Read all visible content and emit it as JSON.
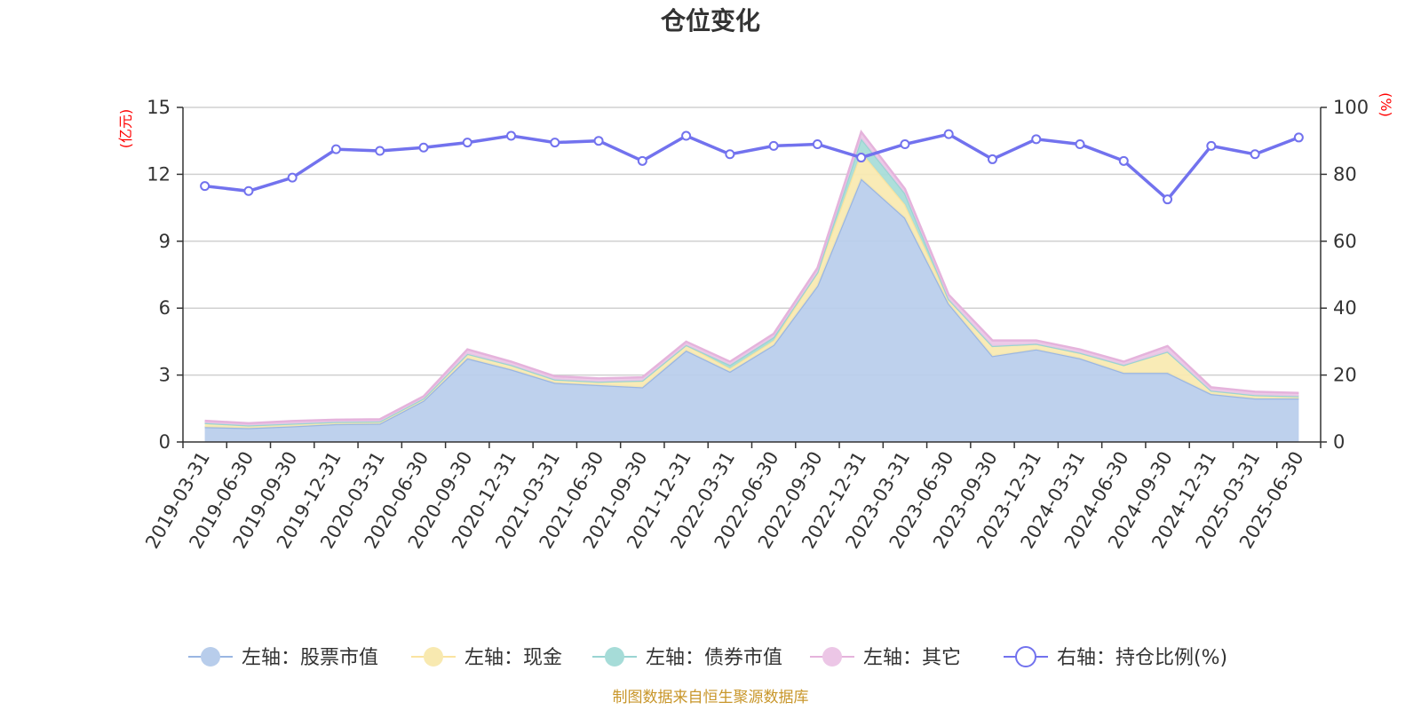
{
  "title": "仓位变化",
  "footer": "制图数据来自恒生聚源数据库",
  "chart_data": {
    "type": "area",
    "title": "仓位变化",
    "categories": [
      "2019-03-31",
      "2019-06-30",
      "2019-09-30",
      "2019-12-31",
      "2020-03-31",
      "2020-06-30",
      "2020-09-30",
      "2020-12-31",
      "2021-03-31",
      "2021-06-30",
      "2021-09-30",
      "2021-12-31",
      "2022-03-31",
      "2022-06-30",
      "2022-09-30",
      "2022-12-31",
      "2023-03-31",
      "2023-06-30",
      "2023-09-30",
      "2023-12-31",
      "2024-03-31",
      "2024-06-30",
      "2024-09-30",
      "2024-12-31",
      "2025-03-31",
      "2025-06-30"
    ],
    "left_axis": {
      "unit": "(亿元)",
      "range": [
        0,
        15
      ],
      "ticks": [
        0,
        3,
        6,
        9,
        12,
        15
      ]
    },
    "right_axis": {
      "unit": "(%)",
      "range": [
        0,
        100
      ],
      "ticks": [
        0,
        20,
        40,
        60,
        80,
        100
      ]
    },
    "stacked_series": [
      {
        "name": "左轴：股票市值",
        "color": "#9ab6e2",
        "fill": "#b8cdeb",
        "values": [
          0.67,
          0.62,
          0.7,
          0.8,
          0.82,
          1.85,
          3.75,
          3.25,
          2.65,
          2.55,
          2.45,
          4.1,
          3.15,
          4.35,
          7.0,
          11.8,
          10.05,
          6.2,
          3.85,
          4.15,
          3.75,
          3.1,
          3.1,
          2.15,
          1.95,
          1.95
        ]
      },
      {
        "name": "左轴：现金",
        "color": "#fae3a0",
        "fill": "#f8e9b0",
        "values": [
          0.18,
          0.12,
          0.12,
          0.1,
          0.1,
          0.1,
          0.2,
          0.2,
          0.15,
          0.15,
          0.3,
          0.25,
          0.15,
          0.2,
          0.6,
          1.2,
          0.6,
          0.2,
          0.45,
          0.25,
          0.25,
          0.35,
          0.95,
          0.15,
          0.15,
          0.1
        ]
      },
      {
        "name": "左轴：债券市值",
        "color": "#9ad4d2",
        "fill": "#a6dcd8",
        "values": [
          0.0,
          0.0,
          0.0,
          0.0,
          0.0,
          0.0,
          0.0,
          0.0,
          0.0,
          0.0,
          0.0,
          0.0,
          0.15,
          0.15,
          0.0,
          0.6,
          0.5,
          0.0,
          0.0,
          0.0,
          0.0,
          0.0,
          0.0,
          0.0,
          0.0,
          0.0
        ]
      },
      {
        "name": "左轴：其它",
        "color": "#e5b3dc",
        "fill": "#ecc6e6",
        "values": [
          0.1,
          0.1,
          0.12,
          0.1,
          0.1,
          0.1,
          0.2,
          0.15,
          0.15,
          0.15,
          0.15,
          0.15,
          0.15,
          0.15,
          0.2,
          0.3,
          0.2,
          0.2,
          0.25,
          0.15,
          0.15,
          0.15,
          0.25,
          0.15,
          0.15,
          0.15
        ]
      }
    ],
    "line_series": {
      "name": "右轴：持仓比例(%)",
      "color": "#7272ee",
      "axis": "right",
      "values": [
        76.5,
        75.0,
        79.0,
        87.5,
        87.0,
        88.0,
        89.5,
        91.5,
        89.5,
        90.0,
        84.0,
        91.5,
        86.0,
        88.5,
        89.0,
        85.0,
        89.0,
        92.0,
        84.5,
        90.5,
        89.0,
        84.0,
        72.5,
        88.5,
        86.0,
        91.0
      ]
    },
    "legend_position": "bottom",
    "grid": true
  }
}
